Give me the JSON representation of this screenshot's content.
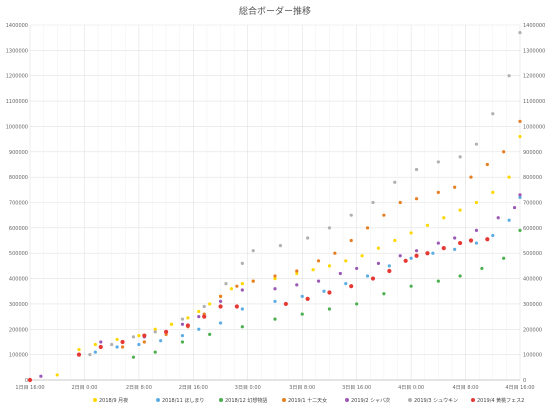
{
  "chart_data": {
    "type": "scatter",
    "title": "総合ボーダー推移",
    "xlabel": "",
    "ylabel": "",
    "x_ticks": [
      "1日目 16:00",
      "2日目 0:00",
      "2日目 8:00",
      "2日目 16:00",
      "3日目 0:00",
      "3日目 8:00",
      "3日目 16:00",
      "4日目 0:00",
      "4日目 8:00",
      "4日目 16:00"
    ],
    "xlim": [
      0,
      9
    ],
    "ylim": [
      0,
      1400000
    ],
    "y_ticks": [
      0,
      100000,
      200000,
      300000,
      400000,
      500000,
      600000,
      700000,
      800000,
      900000,
      1000000,
      1100000,
      1200000,
      1300000,
      1400000
    ],
    "y_tick_labels": [
      "0",
      "100000",
      "200000",
      "300000",
      "400000",
      "500000",
      "600000",
      "700000",
      "800000",
      "900000",
      "1000000",
      "1100000",
      "1200000",
      "1300000",
      "1400000"
    ],
    "grid": true,
    "legend_position": "bottom",
    "series": [
      {
        "name": "2018/9 月夜",
        "color": "#FFD700",
        "points": [
          [
            0.0,
            0
          ],
          [
            0.5,
            20000
          ],
          [
            0.9,
            120000
          ],
          [
            1.2,
            140000
          ],
          [
            1.6,
            160000
          ],
          [
            2.0,
            175000
          ],
          [
            2.3,
            200000
          ],
          [
            2.6,
            220000
          ],
          [
            2.9,
            245000
          ],
          [
            3.1,
            270000
          ],
          [
            3.3,
            300000
          ],
          [
            3.5,
            330000
          ],
          [
            3.7,
            360000
          ],
          [
            3.9,
            380000
          ],
          [
            4.1,
            390000
          ],
          [
            4.5,
            400000
          ],
          [
            4.9,
            420000
          ],
          [
            5.2,
            435000
          ],
          [
            5.5,
            450000
          ],
          [
            5.8,
            470000
          ],
          [
            6.1,
            490000
          ],
          [
            6.4,
            520000
          ],
          [
            6.7,
            550000
          ],
          [
            7.0,
            580000
          ],
          [
            7.3,
            610000
          ],
          [
            7.6,
            640000
          ],
          [
            7.9,
            670000
          ],
          [
            8.2,
            700000
          ],
          [
            8.5,
            740000
          ],
          [
            8.8,
            800000
          ],
          [
            9.0,
            960000
          ]
        ]
      },
      {
        "name": "2018/11 ほしまり",
        "color": "#5DADE2",
        "points": [
          [
            0.9,
            100000
          ],
          [
            1.2,
            110000
          ],
          [
            1.6,
            130000
          ],
          [
            2.0,
            140000
          ],
          [
            2.4,
            155000
          ],
          [
            2.8,
            175000
          ],
          [
            3.1,
            200000
          ],
          [
            3.5,
            225000
          ],
          [
            3.9,
            280000
          ],
          [
            4.5,
            310000
          ],
          [
            5.0,
            330000
          ],
          [
            5.4,
            350000
          ],
          [
            5.8,
            380000
          ],
          [
            6.2,
            410000
          ],
          [
            6.6,
            450000
          ],
          [
            7.0,
            480000
          ],
          [
            7.4,
            500000
          ],
          [
            7.8,
            515000
          ],
          [
            8.2,
            540000
          ],
          [
            8.5,
            570000
          ],
          [
            8.8,
            630000
          ],
          [
            9.0,
            720000
          ]
        ]
      },
      {
        "name": "2018/12 幻想物語",
        "color": "#4CAF50",
        "points": [
          [
            1.9,
            90000
          ],
          [
            2.3,
            110000
          ],
          [
            2.8,
            150000
          ],
          [
            3.3,
            180000
          ],
          [
            3.9,
            210000
          ],
          [
            4.5,
            240000
          ],
          [
            5.0,
            260000
          ],
          [
            5.5,
            280000
          ],
          [
            6.0,
            300000
          ],
          [
            6.5,
            340000
          ],
          [
            7.0,
            370000
          ],
          [
            7.5,
            390000
          ],
          [
            7.9,
            410000
          ],
          [
            8.3,
            440000
          ],
          [
            8.7,
            480000
          ],
          [
            9.0,
            590000
          ]
        ]
      },
      {
        "name": "2019/1 十二天女",
        "color": "#E67E22",
        "points": [
          [
            1.7,
            130000
          ],
          [
            2.1,
            150000
          ],
          [
            2.5,
            180000
          ],
          [
            2.9,
            210000
          ],
          [
            3.2,
            260000
          ],
          [
            3.5,
            330000
          ],
          [
            3.8,
            370000
          ],
          [
            4.1,
            390000
          ],
          [
            4.5,
            410000
          ],
          [
            4.9,
            430000
          ],
          [
            5.3,
            470000
          ],
          [
            5.6,
            500000
          ],
          [
            5.9,
            550000
          ],
          [
            6.2,
            600000
          ],
          [
            6.5,
            650000
          ],
          [
            6.8,
            700000
          ],
          [
            7.1,
            715000
          ],
          [
            7.5,
            740000
          ],
          [
            7.8,
            760000
          ],
          [
            8.1,
            800000
          ],
          [
            8.4,
            850000
          ],
          [
            8.7,
            900000
          ],
          [
            9.0,
            1020000
          ]
        ]
      },
      {
        "name": "2019/2 シャバ次",
        "color": "#9B59B6",
        "points": [
          [
            0.2,
            15000
          ],
          [
            1.3,
            150000
          ],
          [
            2.1,
            170000
          ],
          [
            2.5,
            190000
          ],
          [
            2.8,
            220000
          ],
          [
            3.1,
            250000
          ],
          [
            3.5,
            310000
          ],
          [
            3.9,
            355000
          ],
          [
            4.5,
            360000
          ],
          [
            4.9,
            375000
          ],
          [
            5.3,
            390000
          ],
          [
            5.7,
            420000
          ],
          [
            6.0,
            440000
          ],
          [
            6.4,
            460000
          ],
          [
            6.8,
            490000
          ],
          [
            7.1,
            510000
          ],
          [
            7.5,
            540000
          ],
          [
            7.8,
            560000
          ],
          [
            8.2,
            590000
          ],
          [
            8.6,
            640000
          ],
          [
            8.9,
            680000
          ],
          [
            9.0,
            730000
          ]
        ]
      },
      {
        "name": "2019/3 シュウキン",
        "color": "#B0B0B0",
        "points": [
          [
            1.1,
            100000
          ],
          [
            1.5,
            140000
          ],
          [
            1.9,
            170000
          ],
          [
            2.3,
            190000
          ],
          [
            2.8,
            240000
          ],
          [
            3.2,
            290000
          ],
          [
            3.6,
            380000
          ],
          [
            3.9,
            460000
          ],
          [
            4.1,
            510000
          ],
          [
            4.6,
            530000
          ],
          [
            5.1,
            560000
          ],
          [
            5.5,
            600000
          ],
          [
            5.9,
            650000
          ],
          [
            6.3,
            700000
          ],
          [
            6.7,
            780000
          ],
          [
            7.1,
            830000
          ],
          [
            7.5,
            860000
          ],
          [
            7.9,
            880000
          ],
          [
            8.2,
            930000
          ],
          [
            8.5,
            1050000
          ],
          [
            8.8,
            1200000
          ],
          [
            9.0,
            1370000
          ]
        ]
      },
      {
        "name": "2019/4 黄桃フェス2",
        "color": "#E53935",
        "points": [
          [
            0.0,
            0
          ],
          [
            0.9,
            100000
          ],
          [
            1.3,
            130000
          ],
          [
            1.7,
            150000
          ],
          [
            2.1,
            175000
          ],
          [
            2.5,
            190000
          ],
          [
            2.9,
            215000
          ],
          [
            3.2,
            250000
          ],
          [
            3.5,
            290000
          ],
          [
            3.8,
            290000
          ],
          [
            4.7,
            300000
          ],
          [
            5.1,
            320000
          ],
          [
            5.5,
            345000
          ],
          [
            5.9,
            370000
          ],
          [
            6.3,
            400000
          ],
          [
            6.6,
            430000
          ],
          [
            6.9,
            470000
          ],
          [
            7.1,
            490000
          ],
          [
            7.3,
            500000
          ],
          [
            7.6,
            520000
          ],
          [
            7.9,
            540000
          ],
          [
            8.1,
            550000
          ],
          [
            8.4,
            555000
          ]
        ]
      }
    ]
  }
}
